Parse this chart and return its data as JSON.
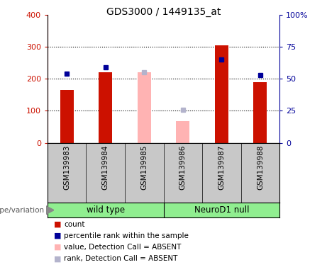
{
  "title": "GDS3000 / 1449135_at",
  "samples": [
    "GSM139983",
    "GSM139984",
    "GSM139985",
    "GSM139986",
    "GSM139987",
    "GSM139988"
  ],
  "count_values": [
    165,
    220,
    null,
    null,
    305,
    190
  ],
  "rank_right": [
    54,
    59,
    null,
    null,
    65,
    53
  ],
  "count_absent": [
    null,
    null,
    220,
    68,
    null,
    null
  ],
  "rank_absent_right": [
    null,
    null,
    55,
    26,
    null,
    null
  ],
  "ylim_left": [
    0,
    400
  ],
  "ylim_right": [
    0,
    100
  ],
  "yticks_left": [
    0,
    100,
    200,
    300,
    400
  ],
  "yticks_right": [
    0,
    25,
    50,
    75,
    100
  ],
  "ytick_labels_left": [
    "0",
    "100",
    "200",
    "300",
    "400"
  ],
  "ytick_labels_right": [
    "0",
    "25",
    "50",
    "75",
    "100%"
  ],
  "color_count": "#cc1100",
  "color_rank": "#000099",
  "color_count_absent": "#ffb3b3",
  "color_rank_absent": "#b3b3cc",
  "bar_width": 0.35,
  "plot_bg_color": "#ffffff",
  "grid_lines": [
    100,
    200,
    300
  ],
  "group_split": 2.5,
  "group1_label": "wild type",
  "group2_label": "NeuroD1 null",
  "group_color": "#90EE90",
  "sample_bg_color": "#c8c8c8",
  "genotype_label": "genotype/variation",
  "legend_items": [
    {
      "label": "count",
      "color": "#cc1100"
    },
    {
      "label": "percentile rank within the sample",
      "color": "#000099"
    },
    {
      "label": "value, Detection Call = ABSENT",
      "color": "#ffb3b3"
    },
    {
      "label": "rank, Detection Call = ABSENT",
      "color": "#b3b3cc"
    }
  ]
}
